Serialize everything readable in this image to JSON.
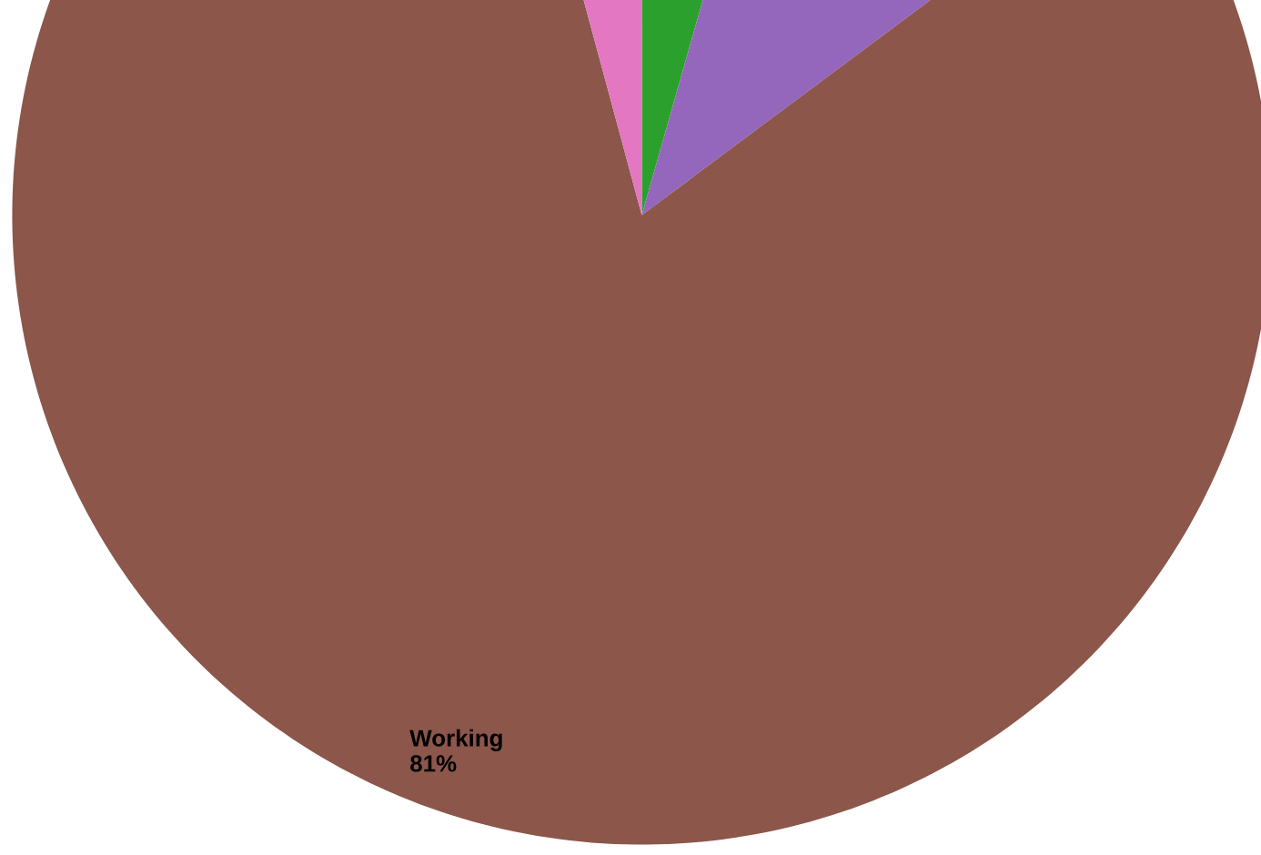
{
  "chart_data": {
    "type": "pie",
    "categories": [
      null,
      null,
      "Working",
      null
    ],
    "values": [
      4.4,
      10.4,
      81,
      4.2
    ],
    "colors": [
      "#2ca02c",
      "#9467bd",
      "#8c564b",
      "#e377c2"
    ],
    "value_labels": [
      null,
      null,
      "81%",
      null
    ]
  }
}
